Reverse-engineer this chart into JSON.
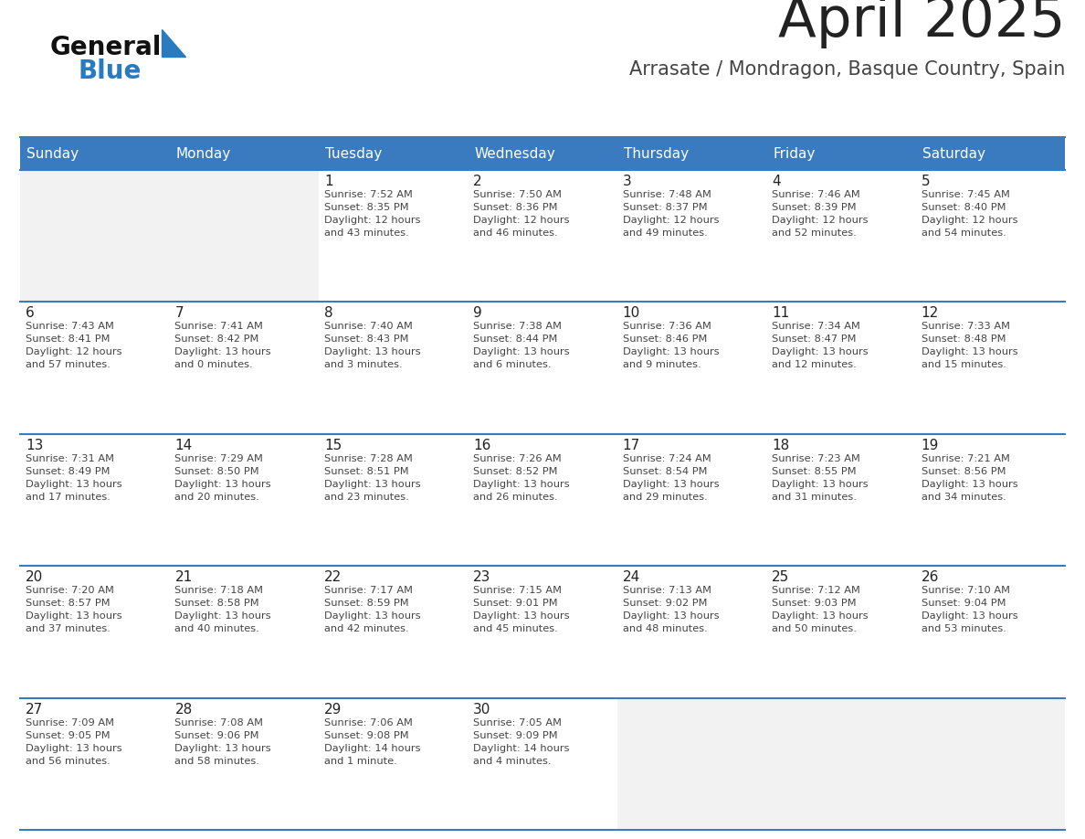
{
  "title": "April 2025",
  "subtitle": "Arrasate / Mondragon, Basque Country, Spain",
  "days_of_week": [
    "Sunday",
    "Monday",
    "Tuesday",
    "Wednesday",
    "Thursday",
    "Friday",
    "Saturday"
  ],
  "header_bg": "#3a7bbf",
  "header_text": "#ffffff",
  "cell_bg": "#ffffff",
  "empty_cell_bg": "#f2f2f2",
  "border_color": "#3a7bbf",
  "title_color": "#222222",
  "subtitle_color": "#444444",
  "day_num_color": "#222222",
  "cell_text_color": "#444444",
  "logo_black": "#111111",
  "logo_blue": "#2a7abf",
  "calendar_data": [
    [
      {
        "day": null,
        "sunrise": null,
        "sunset": null,
        "daylight": null
      },
      {
        "day": null,
        "sunrise": null,
        "sunset": null,
        "daylight": null
      },
      {
        "day": 1,
        "sunrise": "Sunrise: 7:52 AM",
        "sunset": "Sunset: 8:35 PM",
        "daylight": "Daylight: 12 hours\nand 43 minutes."
      },
      {
        "day": 2,
        "sunrise": "Sunrise: 7:50 AM",
        "sunset": "Sunset: 8:36 PM",
        "daylight": "Daylight: 12 hours\nand 46 minutes."
      },
      {
        "day": 3,
        "sunrise": "Sunrise: 7:48 AM",
        "sunset": "Sunset: 8:37 PM",
        "daylight": "Daylight: 12 hours\nand 49 minutes."
      },
      {
        "day": 4,
        "sunrise": "Sunrise: 7:46 AM",
        "sunset": "Sunset: 8:39 PM",
        "daylight": "Daylight: 12 hours\nand 52 minutes."
      },
      {
        "day": 5,
        "sunrise": "Sunrise: 7:45 AM",
        "sunset": "Sunset: 8:40 PM",
        "daylight": "Daylight: 12 hours\nand 54 minutes."
      }
    ],
    [
      {
        "day": 6,
        "sunrise": "Sunrise: 7:43 AM",
        "sunset": "Sunset: 8:41 PM",
        "daylight": "Daylight: 12 hours\nand 57 minutes."
      },
      {
        "day": 7,
        "sunrise": "Sunrise: 7:41 AM",
        "sunset": "Sunset: 8:42 PM",
        "daylight": "Daylight: 13 hours\nand 0 minutes."
      },
      {
        "day": 8,
        "sunrise": "Sunrise: 7:40 AM",
        "sunset": "Sunset: 8:43 PM",
        "daylight": "Daylight: 13 hours\nand 3 minutes."
      },
      {
        "day": 9,
        "sunrise": "Sunrise: 7:38 AM",
        "sunset": "Sunset: 8:44 PM",
        "daylight": "Daylight: 13 hours\nand 6 minutes."
      },
      {
        "day": 10,
        "sunrise": "Sunrise: 7:36 AM",
        "sunset": "Sunset: 8:46 PM",
        "daylight": "Daylight: 13 hours\nand 9 minutes."
      },
      {
        "day": 11,
        "sunrise": "Sunrise: 7:34 AM",
        "sunset": "Sunset: 8:47 PM",
        "daylight": "Daylight: 13 hours\nand 12 minutes."
      },
      {
        "day": 12,
        "sunrise": "Sunrise: 7:33 AM",
        "sunset": "Sunset: 8:48 PM",
        "daylight": "Daylight: 13 hours\nand 15 minutes."
      }
    ],
    [
      {
        "day": 13,
        "sunrise": "Sunrise: 7:31 AM",
        "sunset": "Sunset: 8:49 PM",
        "daylight": "Daylight: 13 hours\nand 17 minutes."
      },
      {
        "day": 14,
        "sunrise": "Sunrise: 7:29 AM",
        "sunset": "Sunset: 8:50 PM",
        "daylight": "Daylight: 13 hours\nand 20 minutes."
      },
      {
        "day": 15,
        "sunrise": "Sunrise: 7:28 AM",
        "sunset": "Sunset: 8:51 PM",
        "daylight": "Daylight: 13 hours\nand 23 minutes."
      },
      {
        "day": 16,
        "sunrise": "Sunrise: 7:26 AM",
        "sunset": "Sunset: 8:52 PM",
        "daylight": "Daylight: 13 hours\nand 26 minutes."
      },
      {
        "day": 17,
        "sunrise": "Sunrise: 7:24 AM",
        "sunset": "Sunset: 8:54 PM",
        "daylight": "Daylight: 13 hours\nand 29 minutes."
      },
      {
        "day": 18,
        "sunrise": "Sunrise: 7:23 AM",
        "sunset": "Sunset: 8:55 PM",
        "daylight": "Daylight: 13 hours\nand 31 minutes."
      },
      {
        "day": 19,
        "sunrise": "Sunrise: 7:21 AM",
        "sunset": "Sunset: 8:56 PM",
        "daylight": "Daylight: 13 hours\nand 34 minutes."
      }
    ],
    [
      {
        "day": 20,
        "sunrise": "Sunrise: 7:20 AM",
        "sunset": "Sunset: 8:57 PM",
        "daylight": "Daylight: 13 hours\nand 37 minutes."
      },
      {
        "day": 21,
        "sunrise": "Sunrise: 7:18 AM",
        "sunset": "Sunset: 8:58 PM",
        "daylight": "Daylight: 13 hours\nand 40 minutes."
      },
      {
        "day": 22,
        "sunrise": "Sunrise: 7:17 AM",
        "sunset": "Sunset: 8:59 PM",
        "daylight": "Daylight: 13 hours\nand 42 minutes."
      },
      {
        "day": 23,
        "sunrise": "Sunrise: 7:15 AM",
        "sunset": "Sunset: 9:01 PM",
        "daylight": "Daylight: 13 hours\nand 45 minutes."
      },
      {
        "day": 24,
        "sunrise": "Sunrise: 7:13 AM",
        "sunset": "Sunset: 9:02 PM",
        "daylight": "Daylight: 13 hours\nand 48 minutes."
      },
      {
        "day": 25,
        "sunrise": "Sunrise: 7:12 AM",
        "sunset": "Sunset: 9:03 PM",
        "daylight": "Daylight: 13 hours\nand 50 minutes."
      },
      {
        "day": 26,
        "sunrise": "Sunrise: 7:10 AM",
        "sunset": "Sunset: 9:04 PM",
        "daylight": "Daylight: 13 hours\nand 53 minutes."
      }
    ],
    [
      {
        "day": 27,
        "sunrise": "Sunrise: 7:09 AM",
        "sunset": "Sunset: 9:05 PM",
        "daylight": "Daylight: 13 hours\nand 56 minutes."
      },
      {
        "day": 28,
        "sunrise": "Sunrise: 7:08 AM",
        "sunset": "Sunset: 9:06 PM",
        "daylight": "Daylight: 13 hours\nand 58 minutes."
      },
      {
        "day": 29,
        "sunrise": "Sunrise: 7:06 AM",
        "sunset": "Sunset: 9:08 PM",
        "daylight": "Daylight: 14 hours\nand 1 minute."
      },
      {
        "day": 30,
        "sunrise": "Sunrise: 7:05 AM",
        "sunset": "Sunset: 9:09 PM",
        "daylight": "Daylight: 14 hours\nand 4 minutes."
      },
      {
        "day": null,
        "sunrise": null,
        "sunset": null,
        "daylight": null
      },
      {
        "day": null,
        "sunrise": null,
        "sunset": null,
        "daylight": null
      },
      {
        "day": null,
        "sunrise": null,
        "sunset": null,
        "daylight": null
      }
    ]
  ]
}
